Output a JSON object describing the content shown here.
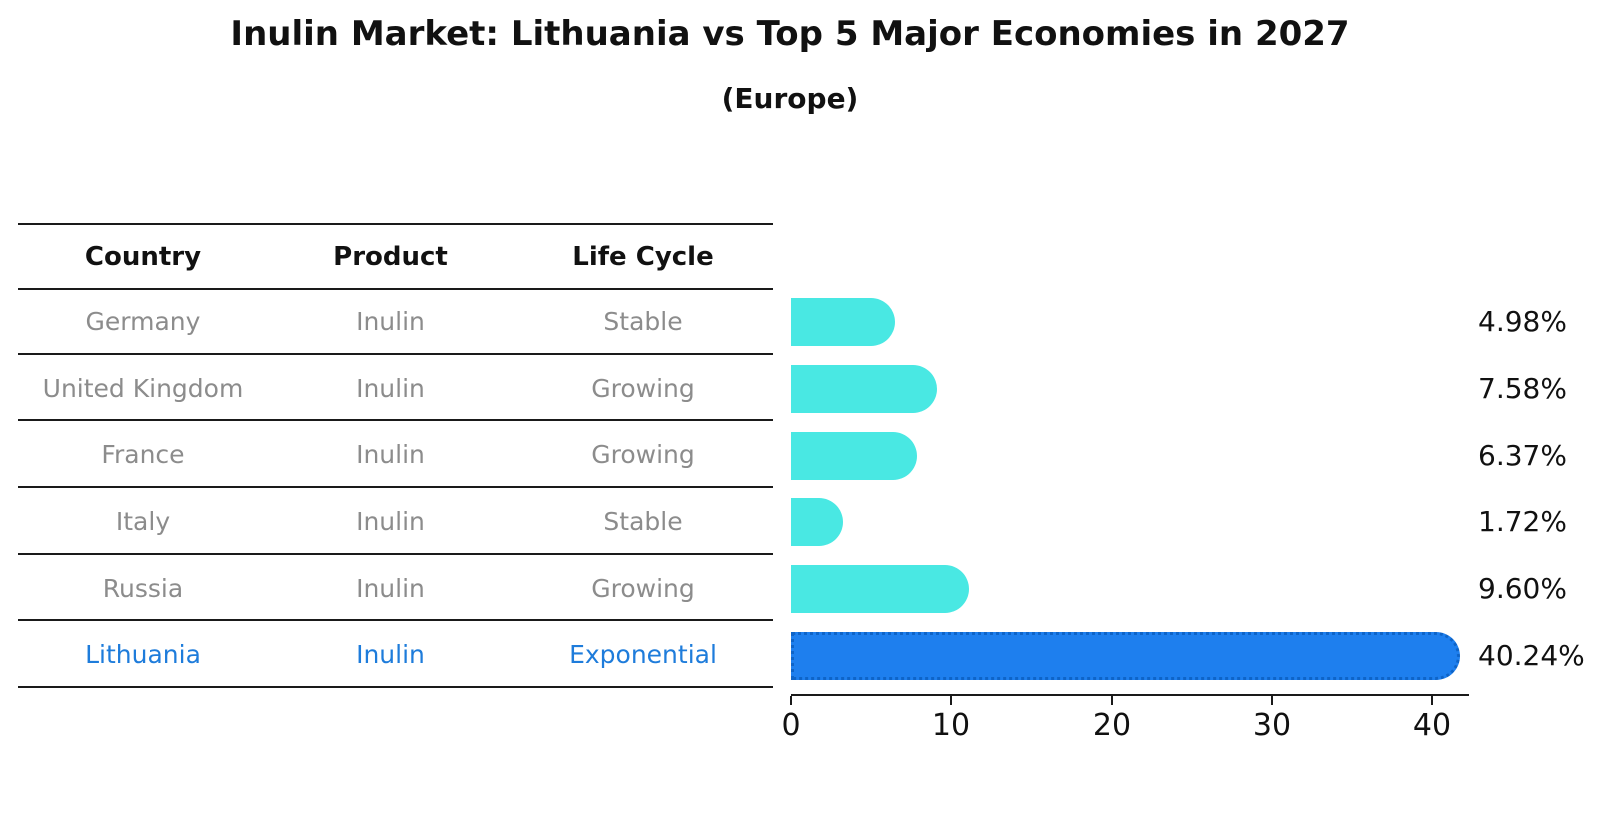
{
  "title": "Inulin Market: Lithuania vs Top 5 Major Economies in 2027",
  "subtitle": "(Europe)",
  "table": {
    "headers": [
      "Country",
      "Product",
      "Life Cycle"
    ],
    "rows": [
      {
        "country": "Germany",
        "product": "Inulin",
        "life_cycle": "Stable",
        "highlight": false
      },
      {
        "country": "United Kingdom",
        "product": "Inulin",
        "life_cycle": "Growing",
        "highlight": false
      },
      {
        "country": "France",
        "product": "Inulin",
        "life_cycle": "Growing",
        "highlight": false
      },
      {
        "country": "Italy",
        "product": "Inulin",
        "life_cycle": "Stable",
        "highlight": false
      },
      {
        "country": "Russia",
        "product": "Inulin",
        "life_cycle": "Growing",
        "highlight": false
      },
      {
        "country": "Lithuania",
        "product": "Inulin",
        "life_cycle": "Exponential",
        "highlight": true
      }
    ]
  },
  "chart_data": {
    "type": "bar",
    "orientation": "horizontal",
    "categories": [
      "Germany",
      "United Kingdom",
      "France",
      "Italy",
      "Russia",
      "Lithuania"
    ],
    "values": [
      4.98,
      7.58,
      6.37,
      1.72,
      9.6,
      40.24
    ],
    "value_labels": [
      "4.98%",
      "7.58%",
      "6.37%",
      "1.72%",
      "9.60%",
      "40.24%"
    ],
    "highlight_index": 5,
    "x_ticks": [
      "0",
      "10",
      "20",
      "30",
      "40"
    ],
    "x_tick_values": [
      0,
      10,
      20,
      30,
      40
    ],
    "xlim": [
      0,
      42.3
    ],
    "grid": false,
    "legend": null,
    "xlabel": "",
    "ylabel": "",
    "colors": {
      "default_bar": "#49e8e3",
      "highlight_bar": "#1e7fee",
      "highlight_border": "#0e64c8",
      "highlight_text": "#1e7cdb",
      "body_text": "#8c8c8c",
      "line": "#1a1a1a"
    }
  }
}
